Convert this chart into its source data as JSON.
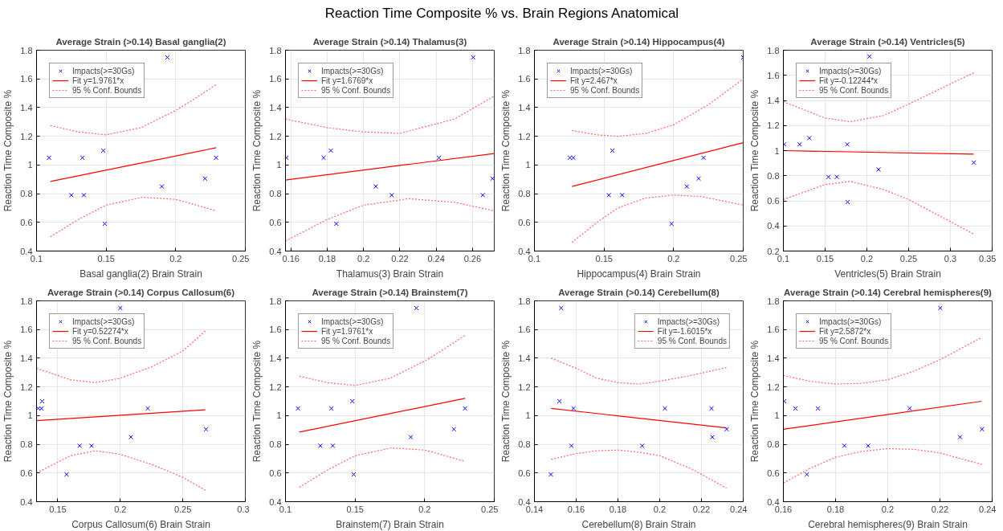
{
  "chart_data": [
    {
      "type": "other",
      "title": "Reaction Time Composite % vs. Brain Regions Anatomical"
    },
    {
      "type": "scatter",
      "title": "Average Strain (>0.14) Basal ganglia(2)",
      "xlabel": "Basal ganglia(2) Brain Strain",
      "ylabel": "Reaction Time Composite %",
      "xlim": [
        0.1,
        0.25
      ],
      "xticks": [
        0.1,
        0.15,
        0.2,
        0.25
      ],
      "ylim": [
        0.4,
        1.8
      ],
      "yticks": [
        0.4,
        0.6,
        0.8,
        1,
        1.2,
        1.4,
        1.6,
        1.8
      ],
      "grid": true,
      "legend": "top left",
      "series": [
        {
          "name": "Impacts(>=30Gs)",
          "type": "scatter",
          "color": "#0000ff",
          "marker": "cross",
          "x": [
            0.109,
            0.125,
            0.133,
            0.134,
            0.148,
            0.149,
            0.194,
            0.19,
            0.221,
            0.229
          ],
          "values": [
            1.05,
            0.79,
            1.05,
            0.79,
            1.1,
            0.59,
            1.75,
            0.85,
            0.905,
            1.05
          ]
        },
        {
          "name": "Fit y=1.9761*x",
          "type": "line",
          "color": "#ff0000",
          "line_style": "solid",
          "marker": "none",
          "x": [
            0.11,
            0.229
          ],
          "values": [
            0.885,
            1.12
          ]
        },
        {
          "name": "95 % Conf. Bounds",
          "type": "line",
          "color": "#ff6666",
          "line_style": "dotted",
          "marker": "none",
          "x": [
            0.11,
            0.13,
            0.15,
            0.175,
            0.2,
            0.215,
            0.229
          ],
          "values": [
            1.275,
            1.23,
            1.21,
            1.26,
            1.38,
            1.47,
            1.56
          ]
        },
        {
          "type": "line",
          "color": "#ff6666",
          "line_style": "dotted",
          "marker": "none",
          "x": [
            0.11,
            0.13,
            0.15,
            0.176,
            0.2,
            0.215,
            0.229
          ],
          "values": [
            0.5,
            0.62,
            0.72,
            0.775,
            0.76,
            0.72,
            0.68
          ]
        }
      ]
    },
    {
      "type": "scatter",
      "title": "Average Strain (>0.14) Thalamus(3)",
      "xlabel": "Thalamus(3) Brain Strain",
      "ylabel": "Reaction Time Composite %",
      "xlim": [
        0.157,
        0.272
      ],
      "xticks": [
        0.16,
        0.18,
        0.2,
        0.22,
        0.24,
        0.26
      ],
      "ylim": [
        0.4,
        1.8
      ],
      "yticks": [
        0.4,
        0.6,
        0.8,
        1,
        1.2,
        1.4,
        1.6,
        1.8
      ],
      "grid": true,
      "legend": "top left",
      "series": [
        {
          "name": "Impacts(>=30Gs)",
          "type": "scatter",
          "color": "#0000ff",
          "marker": "cross",
          "x": [
            0.1575,
            0.178,
            0.182,
            0.185,
            0.2067,
            0.2155,
            0.2415,
            0.2604,
            0.2657,
            0.271
          ],
          "values": [
            1.05,
            1.05,
            1.1,
            0.59,
            0.85,
            0.79,
            1.05,
            1.75,
            0.79,
            0.905
          ]
        },
        {
          "name": "Fit y=1.6769*x",
          "type": "line",
          "color": "#ff0000",
          "line_style": "solid",
          "marker": "none",
          "x": [
            0.157,
            0.272
          ],
          "values": [
            0.895,
            1.08
          ]
        },
        {
          "name": "95 % Conf. Bounds",
          "type": "line",
          "color": "#ff6666",
          "line_style": "dotted",
          "marker": "none",
          "x": [
            0.157,
            0.18,
            0.2,
            0.22,
            0.25,
            0.272
          ],
          "values": [
            1.32,
            1.26,
            1.23,
            1.22,
            1.32,
            1.48
          ]
        },
        {
          "type": "line",
          "color": "#ff6666",
          "line_style": "dotted",
          "marker": "none",
          "x": [
            0.157,
            0.18,
            0.2,
            0.225,
            0.25,
            0.272
          ],
          "values": [
            0.47,
            0.62,
            0.72,
            0.765,
            0.74,
            0.68
          ]
        }
      ]
    },
    {
      "type": "scatter",
      "title": "Average Strain (>0.14) Hippocampus(4)",
      "xlabel": "Hippocampus(4) Brain Strain",
      "ylabel": "Reaction Time Composite %",
      "xlim": [
        0.1,
        0.25
      ],
      "xticks": [
        0.1,
        0.15,
        0.2,
        0.25
      ],
      "ylim": [
        0.4,
        1.8
      ],
      "yticks": [
        0.4,
        0.6,
        0.8,
        1,
        1.2,
        1.4,
        1.6,
        1.8
      ],
      "grid": true,
      "legend": "top left",
      "series": [
        {
          "name": "Impacts(>=30Gs)",
          "type": "scatter",
          "color": "#0000ff",
          "marker": "cross",
          "x": [
            0.1255,
            0.128,
            0.156,
            0.1535,
            0.163,
            0.1985,
            0.2095,
            0.218,
            0.2215,
            0.25
          ],
          "values": [
            1.05,
            1.05,
            1.1,
            0.79,
            0.79,
            0.59,
            0.85,
            0.905,
            1.05,
            1.75
          ]
        },
        {
          "name": "Fit y=2.467*x",
          "type": "line",
          "color": "#ff0000",
          "line_style": "solid",
          "marker": "none",
          "x": [
            0.127,
            0.25
          ],
          "values": [
            0.85,
            1.155
          ]
        },
        {
          "name": "95 % Conf. Bounds",
          "type": "line",
          "color": "#ff6666",
          "line_style": "dotted",
          "marker": "none",
          "x": [
            0.127,
            0.145,
            0.16,
            0.18,
            0.2,
            0.225,
            0.25
          ],
          "values": [
            1.24,
            1.21,
            1.2,
            1.22,
            1.28,
            1.42,
            1.6
          ]
        },
        {
          "type": "line",
          "color": "#ff6666",
          "line_style": "dotted",
          "marker": "none",
          "x": [
            0.127,
            0.145,
            0.16,
            0.18,
            0.2,
            0.22,
            0.25
          ],
          "values": [
            0.46,
            0.6,
            0.7,
            0.77,
            0.79,
            0.78,
            0.72
          ]
        }
      ]
    },
    {
      "type": "scatter",
      "title": "Average Strain (>0.14) Ventricles(5)",
      "xlabel": "Ventricles(5) Brain Strain",
      "ylabel": "Reaction Time Composite %",
      "xlim": [
        0.1,
        0.35
      ],
      "xticks": [
        0.1,
        0.15,
        0.2,
        0.25,
        0.3,
        0.35
      ],
      "ylim": [
        0.2,
        1.8
      ],
      "yticks": [
        0.2,
        0.4,
        0.6,
        0.8,
        1,
        1.2,
        1.4,
        1.6,
        1.8
      ],
      "grid": true,
      "legend": "top left",
      "series": [
        {
          "name": "Impacts(>=30Gs)",
          "type": "scatter",
          "color": "#0000ff",
          "marker": "cross",
          "x": [
            0.101,
            0.1195,
            0.131,
            0.154,
            0.164,
            0.177,
            0.1765,
            0.203,
            0.214,
            0.328
          ],
          "values": [
            1.05,
            1.05,
            1.1,
            0.79,
            0.79,
            0.59,
            1.05,
            1.75,
            0.85,
            0.905
          ]
        },
        {
          "name": "Fit y=-0.12244*x",
          "type": "line",
          "color": "#ff0000",
          "line_style": "solid",
          "marker": "none",
          "x": [
            0.1,
            0.328
          ],
          "values": [
            1.0,
            0.972
          ]
        },
        {
          "name": "95 % Conf. Bounds",
          "type": "line",
          "color": "#ff6666",
          "line_style": "dotted",
          "marker": "none",
          "x": [
            0.1,
            0.15,
            0.18,
            0.22,
            0.25,
            0.29,
            0.328
          ],
          "values": [
            1.39,
            1.26,
            1.23,
            1.28,
            1.37,
            1.5,
            1.62
          ]
        },
        {
          "type": "line",
          "color": "#ff6666",
          "line_style": "dotted",
          "marker": "none",
          "x": [
            0.1,
            0.15,
            0.18,
            0.22,
            0.25,
            0.29,
            0.328
          ],
          "values": [
            0.61,
            0.73,
            0.755,
            0.69,
            0.61,
            0.47,
            0.335
          ]
        }
      ]
    },
    {
      "type": "scatter",
      "title": "Average Strain (>0.14) Corpus Callosum(6)",
      "xlabel": "Corpus Callosum(6) Brain Strain",
      "ylabel": "Reaction Time Composite %",
      "xlim": [
        0.133,
        0.3
      ],
      "xticks": [
        0.15,
        0.2,
        0.25,
        0.3
      ],
      "ylim": [
        0.4,
        1.8
      ],
      "yticks": [
        0.4,
        0.6,
        0.8,
        1,
        1.2,
        1.4,
        1.6,
        1.8
      ],
      "grid": true,
      "legend": "top left",
      "series": [
        {
          "name": "Impacts(>=30Gs)",
          "type": "scatter",
          "color": "#0000ff",
          "marker": "cross",
          "x": [
            0.1344,
            0.137,
            0.1375,
            0.157,
            0.1675,
            0.177,
            0.2,
            0.2085,
            0.222,
            0.2685
          ],
          "values": [
            1.05,
            1.05,
            1.1,
            0.59,
            0.79,
            0.79,
            1.75,
            0.85,
            1.05,
            0.905
          ]
        },
        {
          "name": "Fit y=0.52274*x",
          "type": "line",
          "color": "#ff0000",
          "line_style": "solid",
          "marker": "none",
          "x": [
            0.133,
            0.268
          ],
          "values": [
            0.965,
            1.04
          ]
        },
        {
          "name": "95 % Conf. Bounds",
          "type": "line",
          "color": "#ff6666",
          "line_style": "dotted",
          "marker": "none",
          "x": [
            0.133,
            0.16,
            0.18,
            0.2,
            0.225,
            0.25,
            0.268
          ],
          "values": [
            1.33,
            1.25,
            1.23,
            1.26,
            1.34,
            1.45,
            1.59
          ]
        },
        {
          "type": "line",
          "color": "#ff6666",
          "line_style": "dotted",
          "marker": "none",
          "x": [
            0.133,
            0.16,
            0.18,
            0.2,
            0.225,
            0.25,
            0.268
          ],
          "values": [
            0.6,
            0.72,
            0.755,
            0.73,
            0.66,
            0.57,
            0.48
          ]
        }
      ]
    },
    {
      "type": "scatter",
      "title": "Average Strain (>0.14) Brainstem(7)",
      "xlabel": "Brainstem(7) Brain Strain",
      "ylabel": "Reaction Time Composite %",
      "xlim": [
        0.1,
        0.25
      ],
      "xticks": [
        0.1,
        0.15,
        0.2,
        0.25
      ],
      "ylim": [
        0.4,
        1.8
      ],
      "yticks": [
        0.4,
        0.6,
        0.8,
        1,
        1.2,
        1.4,
        1.6,
        1.8
      ],
      "grid": true,
      "legend": "top left",
      "series": [
        {
          "name": "Impacts(>=30Gs)",
          "type": "scatter",
          "color": "#0000ff",
          "marker": "cross",
          "x": [
            0.109,
            0.125,
            0.133,
            0.134,
            0.148,
            0.149,
            0.194,
            0.19,
            0.221,
            0.229
          ],
          "values": [
            1.05,
            0.79,
            1.05,
            0.79,
            1.1,
            0.59,
            1.75,
            0.85,
            0.905,
            1.05
          ]
        },
        {
          "name": "Fit y=1.9761*x",
          "type": "line",
          "color": "#ff0000",
          "line_style": "solid",
          "marker": "none",
          "x": [
            0.11,
            0.229
          ],
          "values": [
            0.885,
            1.12
          ]
        },
        {
          "name": "95 % Conf. Bounds",
          "type": "line",
          "color": "#ff6666",
          "line_style": "dotted",
          "marker": "none",
          "x": [
            0.11,
            0.13,
            0.15,
            0.175,
            0.2,
            0.215,
            0.229
          ],
          "values": [
            1.275,
            1.23,
            1.21,
            1.26,
            1.38,
            1.47,
            1.56
          ]
        },
        {
          "type": "line",
          "color": "#ff6666",
          "line_style": "dotted",
          "marker": "none",
          "x": [
            0.11,
            0.13,
            0.15,
            0.176,
            0.2,
            0.215,
            0.229
          ],
          "values": [
            0.5,
            0.62,
            0.72,
            0.775,
            0.76,
            0.72,
            0.68
          ]
        }
      ]
    },
    {
      "type": "scatter",
      "title": "Average Strain (>0.14) Cerebellum(8)",
      "xlabel": "Cerebellum(8) Brain Strain",
      "ylabel": "Reaction Time Composite %",
      "xlim": [
        0.14,
        0.24
      ],
      "xticks": [
        0.14,
        0.16,
        0.18,
        0.2,
        0.22,
        0.24
      ],
      "ylim": [
        0.4,
        1.8
      ],
      "yticks": [
        0.4,
        0.6,
        0.8,
        1,
        1.2,
        1.4,
        1.6,
        1.8
      ],
      "grid": true,
      "legend": "top right",
      "series": [
        {
          "name": "Impacts(>=30Gs)",
          "type": "scatter",
          "color": "#0000ff",
          "marker": "cross",
          "x": [
            0.1479,
            0.152,
            0.1528,
            0.1577,
            0.1587,
            0.1916,
            0.2025,
            0.2248,
            0.2252,
            0.2321
          ],
          "values": [
            0.59,
            1.1,
            1.75,
            0.79,
            1.05,
            0.79,
            1.05,
            1.05,
            0.85,
            0.905
          ]
        },
        {
          "name": "Fit y=-1.6015*x",
          "type": "line",
          "color": "#ff0000",
          "line_style": "solid",
          "marker": "none",
          "x": [
            0.148,
            0.232
          ],
          "values": [
            1.05,
            0.915
          ]
        },
        {
          "name": "95 % Conf. Bounds",
          "type": "line",
          "color": "#ff6666",
          "line_style": "dotted",
          "marker": "none",
          "x": [
            0.148,
            0.16,
            0.17,
            0.18,
            0.19,
            0.2,
            0.215,
            0.232
          ],
          "values": [
            1.4,
            1.33,
            1.26,
            1.23,
            1.22,
            1.24,
            1.28,
            1.335
          ]
        },
        {
          "type": "line",
          "color": "#ff6666",
          "line_style": "dotted",
          "marker": "none",
          "x": [
            0.148,
            0.16,
            0.17,
            0.18,
            0.19,
            0.2,
            0.215,
            0.232
          ],
          "values": [
            0.695,
            0.735,
            0.755,
            0.76,
            0.745,
            0.72,
            0.63,
            0.495
          ]
        }
      ]
    },
    {
      "type": "scatter",
      "title": "Average Strain (>0.14) Cerebral hemispheres(9)",
      "xlabel": "Cerebral hemispheres(9) Brain Strain",
      "ylabel": "Reaction Time Composite %",
      "xlim": [
        0.16,
        0.24
      ],
      "xticks": [
        0.16,
        0.18,
        0.2,
        0.22,
        0.24
      ],
      "ylim": [
        0.4,
        1.8
      ],
      "yticks": [
        0.4,
        0.6,
        0.8,
        1,
        1.2,
        1.4,
        1.6,
        1.8
      ],
      "grid": true,
      "legend": "top left",
      "series": [
        {
          "name": "Impacts(>=30Gs)",
          "type": "scatter",
          "color": "#0000ff",
          "marker": "cross",
          "x": [
            0.1603,
            0.1646,
            0.169,
            0.1732,
            0.1834,
            0.1925,
            0.2084,
            0.2201,
            0.2277,
            0.2361
          ],
          "values": [
            1.1,
            1.05,
            0.59,
            1.05,
            0.79,
            0.79,
            1.05,
            1.75,
            0.85,
            0.905
          ]
        },
        {
          "name": "Fit y=2.5872*x",
          "type": "line",
          "color": "#ff0000",
          "line_style": "solid",
          "marker": "none",
          "x": [
            0.16,
            0.236
          ],
          "values": [
            0.905,
            1.1
          ]
        },
        {
          "name": "95 % Conf. Bounds",
          "type": "line",
          "color": "#ff6666",
          "line_style": "dotted",
          "marker": "none",
          "x": [
            0.16,
            0.17,
            0.18,
            0.19,
            0.2,
            0.21,
            0.22,
            0.236
          ],
          "values": [
            1.28,
            1.24,
            1.22,
            1.225,
            1.25,
            1.31,
            1.39,
            1.545
          ]
        },
        {
          "type": "line",
          "color": "#ff6666",
          "line_style": "dotted",
          "marker": "none",
          "x": [
            0.16,
            0.17,
            0.18,
            0.19,
            0.2,
            0.21,
            0.22,
            0.236
          ],
          "values": [
            0.53,
            0.63,
            0.71,
            0.75,
            0.77,
            0.765,
            0.74,
            0.66
          ]
        }
      ]
    }
  ]
}
